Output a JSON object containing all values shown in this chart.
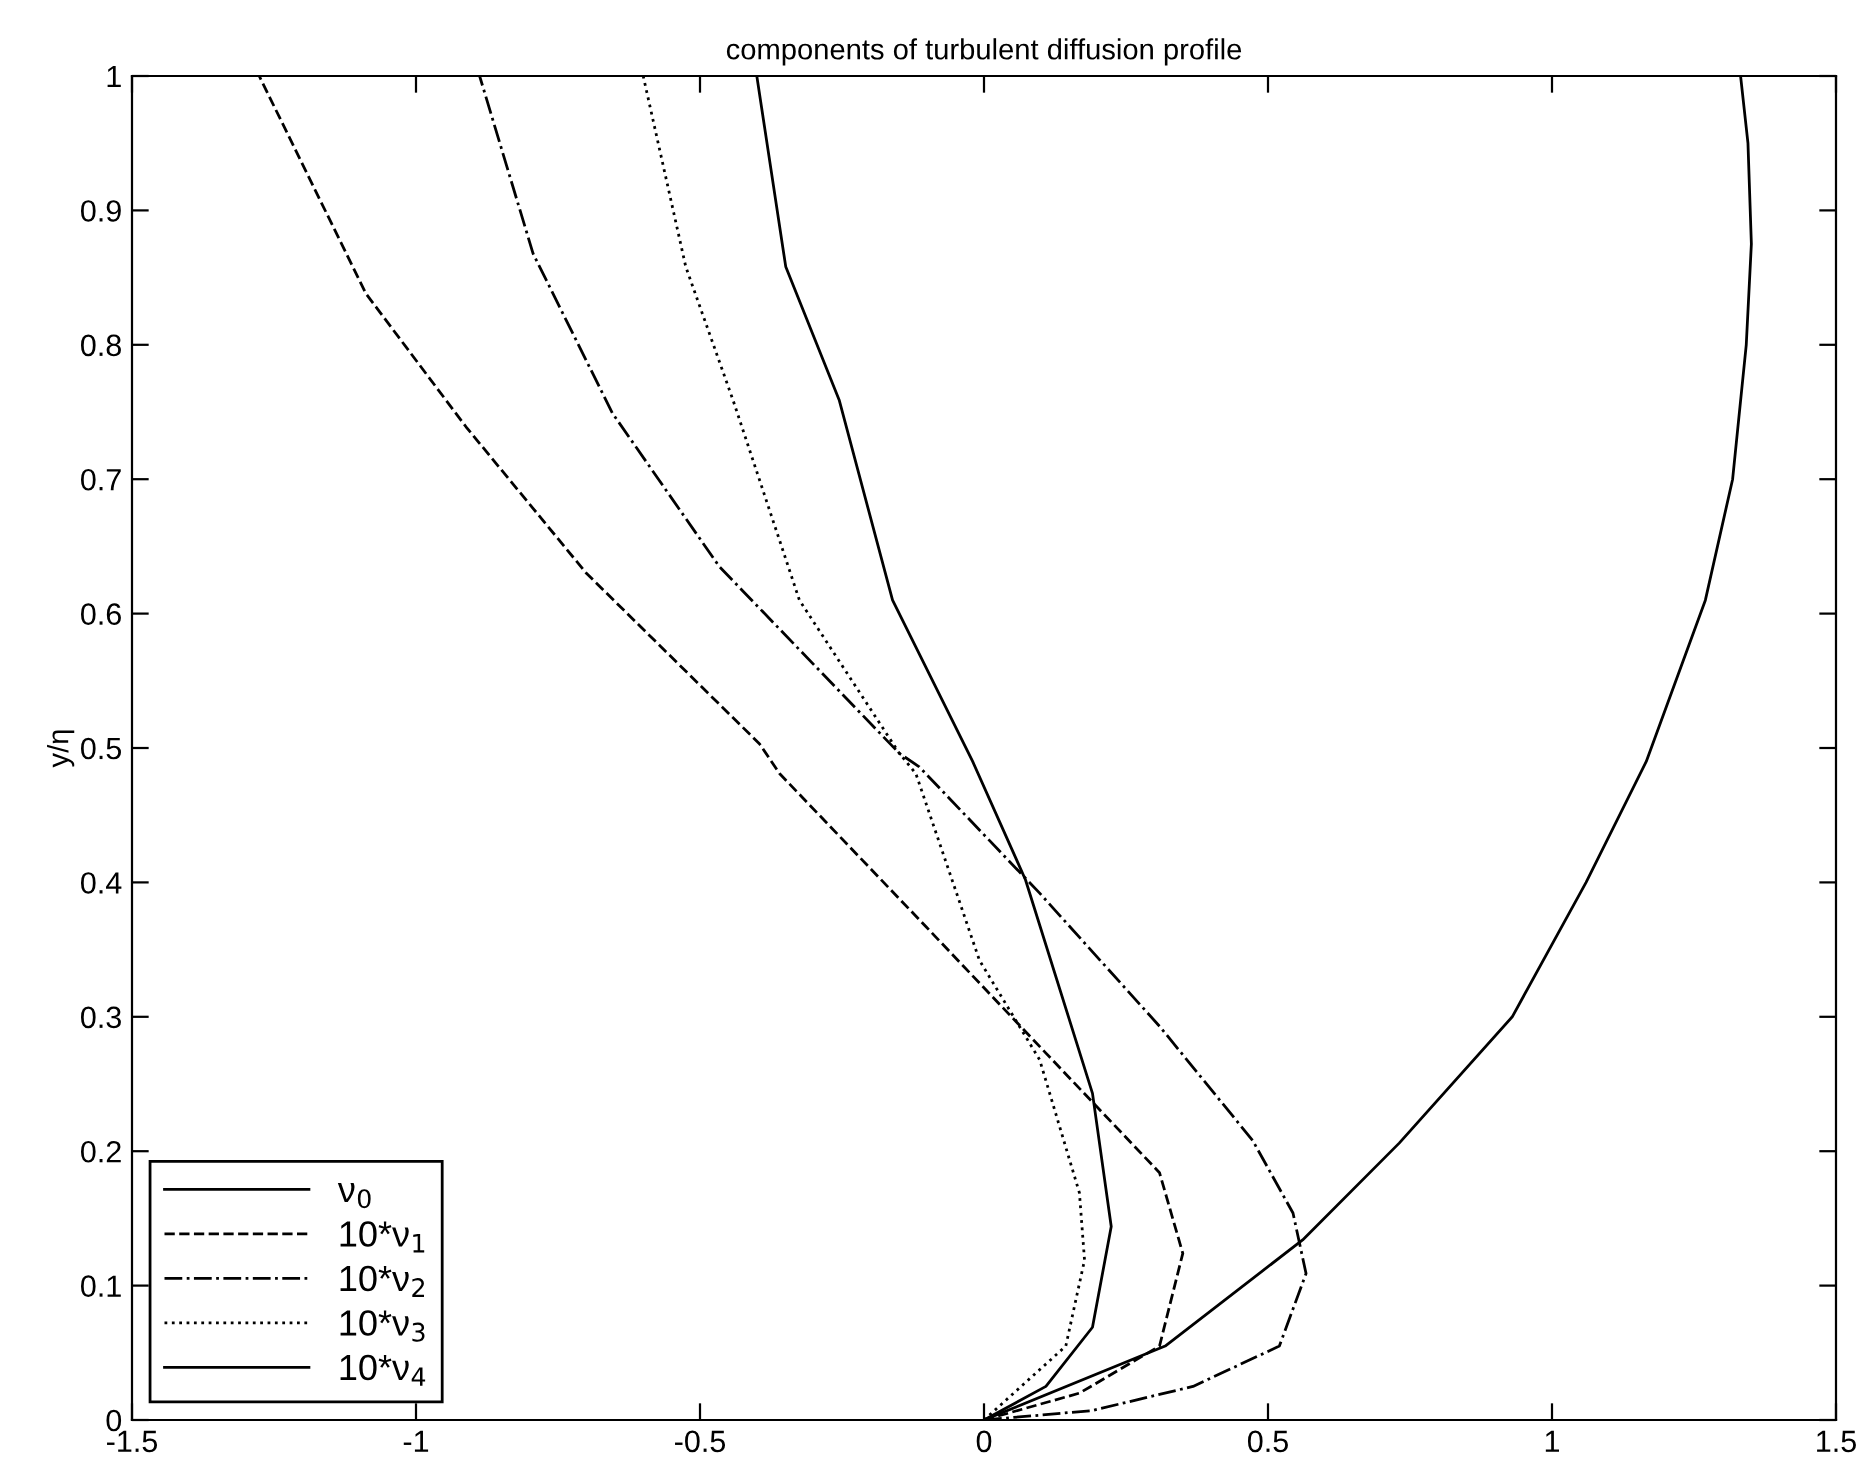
{
  "chart_data": {
    "type": "line",
    "title": "components of turbulent diffusion profile",
    "ylabel": "y/η",
    "xlim": [
      -1.5,
      1.5
    ],
    "ylim": [
      0,
      1
    ],
    "xticks": [
      -1.5,
      -1,
      -0.5,
      0,
      0.5,
      1,
      1.5
    ],
    "yticks": [
      0,
      0.1,
      0.2,
      0.3,
      0.4,
      0.5,
      0.6,
      0.7,
      0.8,
      0.9,
      1
    ],
    "grid": false,
    "legend": "bottom left",
    "marker": "none",
    "series": [
      {
        "name": "ν$_{0}$",
        "color": "#000000",
        "line_style": "solid",
        "x": [
          0,
          0.319,
          0.561,
          0.731,
          0.93,
          1.06,
          1.166,
          1.27,
          1.318,
          1.342,
          1.351,
          1.345,
          1.332
        ],
        "values": [
          0,
          0.055,
          0.134,
          0.206,
          0.3,
          0.4,
          0.49,
          0.61,
          0.7,
          0.8,
          0.875,
          0.95,
          1
        ]
      },
      {
        "name": "10*ν$_{1}$",
        "color": "#000000",
        "line_style": "dashed",
        "x": [
          0,
          0.168,
          0.309,
          0.35,
          0.309,
          0.109,
          -0.102,
          -0.36,
          -0.395,
          -0.7,
          -0.912,
          -1.088,
          -1.276
        ],
        "values": [
          0,
          0.02,
          0.055,
          0.124,
          0.184,
          0.273,
          0.367,
          0.481,
          0.503,
          0.63,
          0.739,
          0.838,
          1
        ]
      },
      {
        "name": "10*ν$_{2}$",
        "color": "#000000",
        "line_style": "dashdot",
        "x": [
          0,
          0.19,
          0.368,
          0.52,
          0.567,
          0.544,
          0.473,
          0.309,
          0.098,
          -0.114,
          -0.149,
          -0.466,
          -0.654,
          -0.794,
          -0.888
        ],
        "values": [
          0,
          0.007,
          0.025,
          0.055,
          0.109,
          0.154,
          0.208,
          0.293,
          0.392,
          0.486,
          0.496,
          0.635,
          0.749,
          0.868,
          1
        ]
      },
      {
        "name": "10*ν$_{3}$",
        "color": "#000000",
        "line_style": "dotted",
        "x": [
          0,
          0.144,
          0.177,
          0.168,
          0.098,
          -0.008,
          -0.12,
          -0.149,
          -0.325,
          -0.442,
          -0.525,
          -0.6
        ],
        "values": [
          0,
          0.055,
          0.119,
          0.169,
          0.268,
          0.342,
          0.481,
          0.496,
          0.61,
          0.759,
          0.858,
          1
        ]
      },
      {
        "name": "10*ν$_{4}$",
        "color": "#000000",
        "line_style": "solid",
        "x": [
          0,
          0.109,
          0.191,
          0.224,
          0.191,
          0.073,
          -0.02,
          -0.161,
          -0.255,
          -0.349,
          -0.4
        ],
        "values": [
          0,
          0.025,
          0.069,
          0.144,
          0.243,
          0.402,
          0.49,
          0.61,
          0.759,
          0.858,
          1
        ]
      }
    ]
  }
}
